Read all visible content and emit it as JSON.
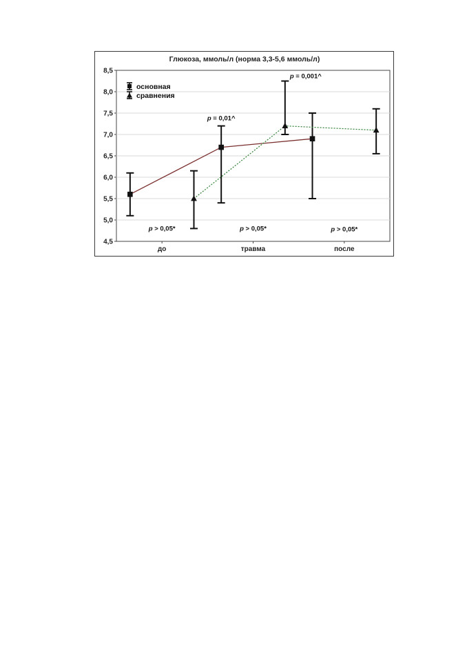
{
  "chart_data": {
    "type": "line",
    "title": "Глюкоза, ммоль/л (норма 3,3-5,6 ммоль/л)",
    "xlabel": "",
    "ylabel": "",
    "categories": [
      "до",
      "травма",
      "после"
    ],
    "ylim": [
      4.5,
      8.5
    ],
    "yticks": [
      "4,5",
      "5,0",
      "5,5",
      "6,0",
      "6,5",
      "7,0",
      "7,5",
      "8,0",
      "8,5"
    ],
    "grid": true,
    "legend_position": "top-left",
    "series": [
      {
        "name": "основная",
        "marker": "square",
        "line_style": "solid",
        "color": "#7a2e2e",
        "values": [
          5.6,
          6.7,
          6.9
        ],
        "lower": [
          5.1,
          5.4,
          5.5
        ],
        "upper": [
          6.1,
          7.2,
          7.5
        ]
      },
      {
        "name": "сравнения",
        "marker": "triangle",
        "line_style": "dotted",
        "color": "#2e7d32",
        "values": [
          5.5,
          7.2,
          7.1
        ],
        "lower": [
          4.8,
          7.0,
          6.55
        ],
        "upper": [
          6.15,
          8.25,
          7.6
        ]
      }
    ],
    "annotations": [
      {
        "p": "p",
        "text": " > 0,05*",
        "category": 0,
        "anchor": "bottom"
      },
      {
        "p": "p",
        "text": " > 0,05*",
        "category": 1,
        "anchor": "bottom"
      },
      {
        "p": "p",
        "text": " > 0,05*",
        "category": 2,
        "anchor": "bottom"
      },
      {
        "p": "p",
        "text": " = 0,01^",
        "category": 1,
        "anchor": "series0-top"
      },
      {
        "p": "p",
        "text": " = 0,001^",
        "category": 1,
        "anchor": "series1-top"
      }
    ]
  }
}
